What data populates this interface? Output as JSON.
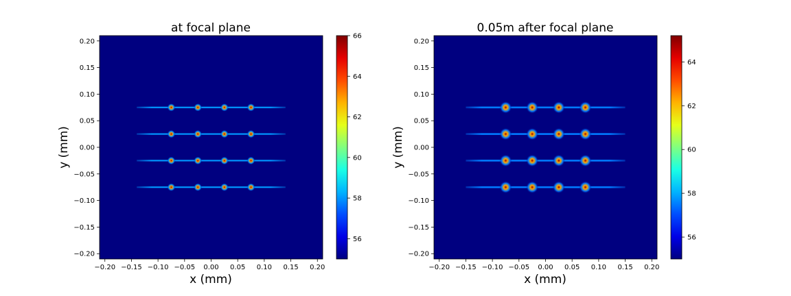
{
  "chart_data": [
    {
      "type": "heatmap",
      "title": "at focal plane",
      "xlabel": "x (mm)",
      "ylabel": "y (mm)",
      "xlim": [
        -0.21,
        0.21
      ],
      "ylim": [
        0.21,
        -0.21
      ],
      "y_inverted": true,
      "x_ticks": [
        "−0.20",
        "−0.15",
        "−0.10",
        "−0.05",
        "0.00",
        "0.05",
        "0.10",
        "0.15",
        "0.20"
      ],
      "x_tick_values": [
        -0.2,
        -0.15,
        -0.1,
        -0.05,
        0.0,
        0.05,
        0.1,
        0.15,
        0.2
      ],
      "y_ticks": [
        "−0.20",
        "−0.15",
        "−0.10",
        "−0.05",
        "0.00",
        "0.05",
        "0.10",
        "0.15",
        "0.20"
      ],
      "y_tick_values": [
        -0.2,
        -0.15,
        -0.1,
        -0.05,
        0.0,
        0.05,
        0.1,
        0.15,
        0.2
      ],
      "colormap": "jet",
      "colorbar": {
        "min": 55,
        "max": 66,
        "ticks": [
          56,
          58,
          60,
          62,
          64,
          66
        ],
        "tick_labels": [
          "56",
          "58",
          "60",
          "62",
          "64",
          "66"
        ]
      },
      "background_value": 55,
      "grid_lines_x": [
        -0.075,
        -0.025,
        0.025,
        0.075
      ],
      "grid_lines_y": [
        -0.075,
        -0.025,
        0.025,
        0.075
      ],
      "line_extent": 0.14,
      "spot_peak": 66,
      "line_value": 58
    },
    {
      "type": "heatmap",
      "title": "0.05m after focal plane",
      "xlabel": "x (mm)",
      "ylabel": "y (mm)",
      "xlim": [
        -0.21,
        0.21
      ],
      "ylim": [
        0.21,
        -0.21
      ],
      "y_inverted": true,
      "x_ticks": [
        "−0.20",
        "−0.15",
        "−0.10",
        "−0.05",
        "0.00",
        "0.05",
        "0.10",
        "0.15",
        "0.20"
      ],
      "x_tick_values": [
        -0.2,
        -0.15,
        -0.1,
        -0.05,
        0.0,
        0.05,
        0.1,
        0.15,
        0.2
      ],
      "y_ticks": [
        "−0.20",
        "−0.15",
        "−0.10",
        "−0.05",
        "0.00",
        "0.05",
        "0.10",
        "0.15",
        "0.20"
      ],
      "y_tick_values": [
        -0.2,
        -0.15,
        -0.1,
        -0.05,
        0.0,
        0.05,
        0.1,
        0.15,
        0.2
      ],
      "colormap": "jet",
      "colorbar": {
        "min": 55,
        "max": 65.2,
        "ticks": [
          56,
          58,
          60,
          62,
          64
        ],
        "tick_labels": [
          "56",
          "58",
          "60",
          "62",
          "64"
        ]
      },
      "background_value": 55,
      "grid_lines_x": [
        -0.075,
        -0.025,
        0.025,
        0.075
      ],
      "grid_lines_y": [
        -0.075,
        -0.025,
        0.025,
        0.075
      ],
      "line_extent": 0.15,
      "spot_peak": 65,
      "line_value": 57.5
    }
  ]
}
